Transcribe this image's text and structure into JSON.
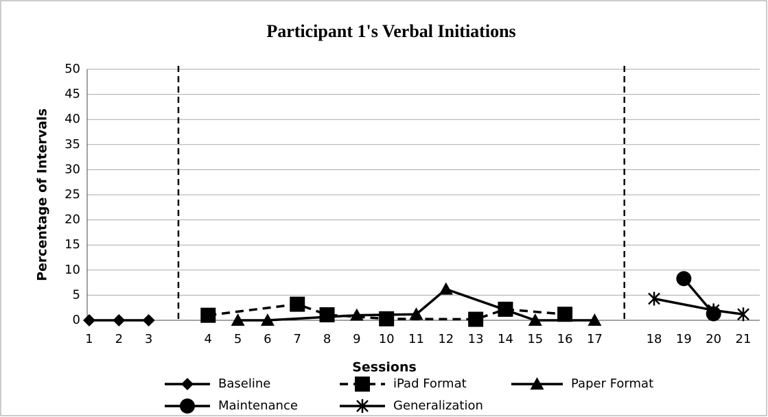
{
  "chart_data": {
    "type": "line",
    "title": "Participant 1's Verbal Initiations",
    "xlabel": "Sessions",
    "ylabel": "Percentage of Intervals",
    "categories": [
      1,
      2,
      3,
      null,
      4,
      5,
      6,
      7,
      8,
      9,
      10,
      11,
      12,
      13,
      14,
      15,
      16,
      17,
      null,
      18,
      19,
      20,
      21
    ],
    "series": [
      {
        "name": "Baseline",
        "color": "#000000",
        "marker": "diamond",
        "dashed": false,
        "x": [
          1,
          2,
          3
        ],
        "values": [
          0,
          0,
          0
        ]
      },
      {
        "name": "iPad Format",
        "color": "#000000",
        "marker": "square",
        "dashed": true,
        "x": [
          4,
          7,
          8,
          10,
          13,
          14,
          16
        ],
        "values": [
          1,
          3.2,
          1.1,
          0.3,
          0.2,
          2.2,
          1.2
        ]
      },
      {
        "name": "Paper Format",
        "color": "#000000",
        "marker": "triangle",
        "dashed": false,
        "x": [
          5,
          6,
          9,
          11,
          12,
          15,
          17
        ],
        "values": [
          0,
          0,
          1,
          1.2,
          6.2,
          0,
          0
        ]
      },
      {
        "name": "Maintenance",
        "color": "#000000",
        "marker": "circle",
        "dashed": false,
        "x": [
          19,
          20
        ],
        "values": [
          8.3,
          1.3
        ]
      },
      {
        "name": "Generalization",
        "color": "#000000",
        "marker": "star",
        "dashed": false,
        "x": [
          18,
          20,
          21
        ],
        "values": [
          4.3,
          2,
          1.2
        ]
      }
    ],
    "ylim": [
      0,
      50
    ],
    "yticks": [
      0,
      5,
      10,
      15,
      20,
      25,
      30,
      35,
      40,
      45,
      50
    ],
    "grid": true,
    "legend": "bottom"
  }
}
